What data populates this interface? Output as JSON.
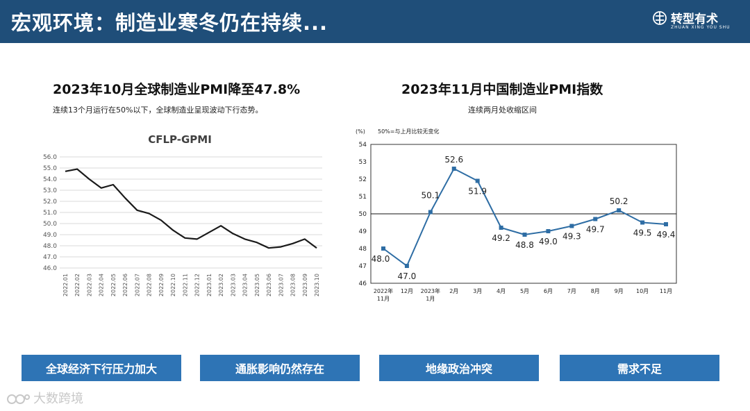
{
  "header": {
    "title": "宏观环境：制造业寒冬仍在持续...",
    "brand_name": "转型有术",
    "brand_sub": "ZHUAN XING YOU SHU"
  },
  "left_panel": {
    "title": "2023年10月全球制造业PMI降至47.8%",
    "subtitle": "连续13个月运行在50%以下，全球制造业呈现波动下行态势。"
  },
  "right_panel": {
    "title": "2023年11月中国制造业PMI指数",
    "subtitle": "连续两月处收缩区间"
  },
  "chart_data": [
    {
      "type": "line",
      "title": "CFLP-GPMI",
      "x": [
        "2022.01",
        "2022.02",
        "2022.03",
        "2022.04",
        "2022.05",
        "2022.06",
        "2022.07",
        "2022.08",
        "2022.09",
        "2022.10",
        "2022.11",
        "2022.12",
        "2023.01",
        "2023.02",
        "2023.03",
        "2023.04",
        "2023.05",
        "2023.06",
        "2023.07",
        "2023.08",
        "2023.09",
        "2023.10"
      ],
      "values": [
        54.7,
        54.9,
        54.0,
        53.2,
        53.5,
        52.3,
        51.2,
        50.9,
        50.3,
        49.4,
        48.7,
        48.6,
        49.2,
        49.8,
        49.1,
        48.6,
        48.3,
        47.8,
        47.9,
        48.2,
        48.6,
        47.8
      ],
      "yticks": [
        "56.0",
        "55.0",
        "54.0",
        "53.0",
        "52.0",
        "51.0",
        "50.0",
        "49.0",
        "48.0",
        "47.0",
        "46.0"
      ],
      "ylim": [
        46.0,
        56.0
      ],
      "grid": true,
      "color": "#1a1a1a"
    },
    {
      "type": "line",
      "ylabel": "(%)",
      "legend_note": "50%=与上月比较无变化",
      "x": [
        "2022年 11月",
        "12月",
        "2023年 1月",
        "2月",
        "3月",
        "4月",
        "5月",
        "6月",
        "7月",
        "8月",
        "9月",
        "10月",
        "11月"
      ],
      "values": [
        48.0,
        47.0,
        50.1,
        52.6,
        51.9,
        49.2,
        48.8,
        49.0,
        49.3,
        49.7,
        50.2,
        49.5,
        49.4
      ],
      "labels": [
        "48.0",
        "47.0",
        "50.1",
        "52.6",
        "51.9",
        "49.2",
        "48.8",
        "49.0",
        "49.3",
        "49.7",
        "50.2",
        "49.5",
        "49.4"
      ],
      "yticks": [
        "54",
        "53",
        "52",
        "51",
        "50",
        "49",
        "48",
        "47",
        "46"
      ],
      "ylim": [
        46,
        54
      ],
      "reference_line": 50,
      "color": "#2e6da4"
    }
  ],
  "factors": [
    "全球经济下行压力加大",
    "通胀影响仍然存在",
    "地缘政治冲突",
    "需求不足"
  ],
  "watermark": "大数跨境",
  "colors": {
    "header": "#1f4e79",
    "factor_bg": "#2e74b5",
    "series_right": "#2e6da4"
  }
}
